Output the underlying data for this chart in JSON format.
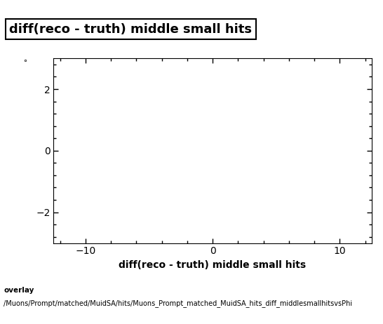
{
  "title": "diff(reco - truth) middle small hits",
  "xlabel": "diff(reco - truth) middle small hits",
  "ylabel": "",
  "xlim": [
    -12.5,
    12.5
  ],
  "ylim": [
    -3.0,
    3.0
  ],
  "xticks": [
    -10,
    0,
    10
  ],
  "yticks": [
    -2,
    0,
    2
  ],
  "background_color": "#ffffff",
  "plot_bg_color": "#ffffff",
  "footer_line1": "overlay",
  "footer_line2": "/Muons/Prompt/matched/MuidSA/hits/Muons_Prompt_matched_MuidSA_hits_diff_middlesmallhitsvsPhi",
  "title_fontsize": 13,
  "axis_fontsize": 10,
  "tick_fontsize": 10,
  "footer_fontsize": 7.5
}
